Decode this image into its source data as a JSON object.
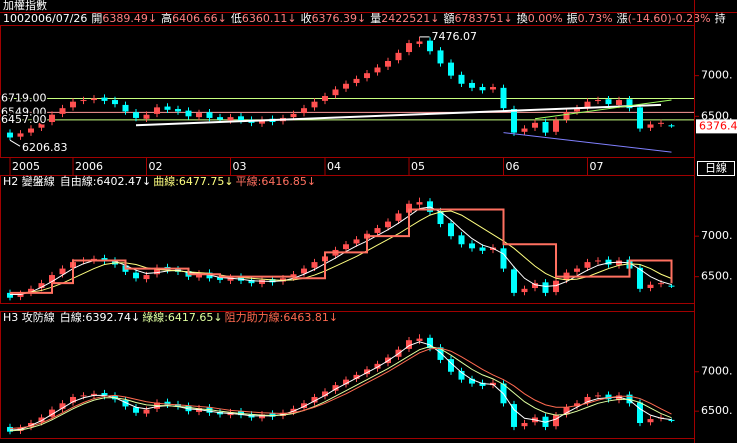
{
  "title": "加權指數",
  "chart_data": {
    "type": "candlestick",
    "info": [
      {
        "text": "100",
        "color": "#ffffff"
      },
      {
        "text": "2006/07/26",
        "color": "#ffffff"
      },
      {
        "text": "開",
        "color": "#ffffff"
      },
      {
        "text": "6389.49↓",
        "color": "#ff8080"
      },
      {
        "text": "高",
        "color": "#ffffff"
      },
      {
        "text": "6406.66↓",
        "color": "#ff8080"
      },
      {
        "text": "低",
        "color": "#ffffff"
      },
      {
        "text": "6360.11↓",
        "color": "#ff8080"
      },
      {
        "text": "收",
        "color": "#ffffff"
      },
      {
        "text": "6376.39↓",
        "color": "#ff8080"
      },
      {
        "text": "量",
        "color": "#ffffff"
      },
      {
        "text": "2422521↓",
        "color": "#ff8080"
      },
      {
        "text": "額",
        "color": "#ffffff"
      },
      {
        "text": "6783751↓",
        "color": "#ff8080"
      },
      {
        "text": "換",
        "color": "#ffffff"
      },
      {
        "text": "0.00%",
        "color": "#ff8080"
      },
      {
        "text": "振",
        "color": "#ffffff"
      },
      {
        "text": "0.73%",
        "color": "#ff8080"
      },
      {
        "text": "漲",
        "color": "#ffffff"
      },
      {
        "text": "(-14.60)-0.23%",
        "color": "#ff8080"
      },
      {
        "text": "持",
        "color": "#ffffff"
      }
    ],
    "categories": [
      "2005",
      null,
      null,
      null,
      null,
      null,
      "2006",
      null,
      null,
      null,
      null,
      null,
      null,
      "02",
      null,
      null,
      null,
      null,
      null,
      null,
      null,
      "03",
      null,
      null,
      null,
      null,
      null,
      null,
      null,
      null,
      "04",
      null,
      null,
      null,
      null,
      null,
      null,
      null,
      "05",
      null,
      null,
      null,
      null,
      null,
      null,
      null,
      null,
      "06",
      null,
      null,
      null,
      null,
      null,
      null,
      null,
      "07",
      null,
      null,
      null,
      null,
      null,
      null,
      null,
      null
    ],
    "open": [
      6300,
      6250,
      6300,
      6360,
      6430,
      6530,
      6610,
      6690,
      6700,
      6730,
      6700,
      6640,
      6550,
      6470,
      6530,
      6620,
      6590,
      6570,
      6490,
      6550,
      6490,
      6450,
      6500,
      6460,
      6410,
      6470,
      6440,
      6490,
      6540,
      6610,
      6690,
      6760,
      6840,
      6910,
      6970,
      7040,
      7110,
      7190,
      7290,
      7390,
      7430,
      7310,
      7160,
      7010,
      6910,
      6860,
      6830,
      6850,
      6590,
      6310,
      6360,
      6430,
      6310,
      6460,
      6560,
      6610,
      6690,
      6710,
      6640,
      6710,
      6610,
      6360,
      6410,
      6389.49
    ],
    "high": [
      6340,
      6330,
      6390,
      6460,
      6560,
      6640,
      6720,
      6740,
      6760,
      6770,
      6740,
      6680,
      6590,
      6560,
      6650,
      6660,
      6630,
      6610,
      6580,
      6590,
      6530,
      6530,
      6540,
      6500,
      6500,
      6510,
      6520,
      6570,
      6640,
      6720,
      6790,
      6870,
      6940,
      7000,
      7070,
      7140,
      7220,
      7320,
      7440,
      7476.07,
      7470,
      7350,
      7200,
      7050,
      6950,
      6900,
      6900,
      6890,
      6630,
      6390,
      6460,
      6470,
      6490,
      6590,
      6640,
      6720,
      6740,
      6750,
      6740,
      6750,
      6650,
      6440,
      6460,
      6406.66
    ],
    "low": [
      6206.83,
      6210,
      6260,
      6320,
      6390,
      6490,
      6570,
      6650,
      6660,
      6650,
      6610,
      6520,
      6440,
      6430,
      6490,
      6540,
      6520,
      6460,
      6450,
      6440,
      6420,
      6410,
      6410,
      6380,
      6370,
      6390,
      6400,
      6450,
      6500,
      6570,
      6650,
      6720,
      6800,
      6870,
      6930,
      7000,
      7070,
      7150,
      7250,
      7350,
      7260,
      7110,
      6960,
      6860,
      6810,
      6780,
      6790,
      6560,
      6260,
      6270,
      6320,
      6260,
      6270,
      6420,
      6520,
      6570,
      6650,
      6610,
      6600,
      6560,
      6310,
      6320,
      6370,
      6360.11
    ],
    "close": [
      6240,
      6290,
      6350,
      6420,
      6520,
      6600,
      6680,
      6700,
      6720,
      6690,
      6650,
      6560,
      6480,
      6520,
      6610,
      6580,
      6560,
      6500,
      6540,
      6480,
      6460,
      6490,
      6450,
      6420,
      6460,
      6430,
      6480,
      6530,
      6600,
      6680,
      6750,
      6830,
      6900,
      6960,
      7030,
      7100,
      7180,
      7280,
      7400,
      7420,
      7300,
      7150,
      7000,
      6900,
      6850,
      6820,
      6860,
      6600,
      6300,
      6350,
      6420,
      6300,
      6450,
      6550,
      6600,
      6680,
      6700,
      6650,
      6700,
      6600,
      6350,
      6400,
      6420,
      6376.39
    ],
    "up_color": "#ff5050",
    "down_color": "#00ffff",
    "last_price": 6376.4,
    "period_label": "日線",
    "panels": [
      {
        "ylim": [
          6000,
          7610
        ],
        "yticks": [
          {
            "value": 7000,
            "label": "7000."
          },
          {
            "value": 6500,
            "label": "6500."
          }
        ],
        "levels": [
          {
            "value": 6719,
            "label": "6719.00",
            "color": "#c8ff80"
          },
          {
            "value": 6549,
            "label": "6549.00",
            "color": "#ff9999"
          },
          {
            "value": 6457,
            "label": "6457.00",
            "color": "#c8ff80"
          }
        ],
        "trendlines": [
          {
            "color": "#ffffff",
            "x": [
              12,
              62
            ],
            "y": [
              6390,
              6640
            ]
          },
          {
            "color": "#a0ff60",
            "x": [
              50,
              63
            ],
            "y": [
              6470,
              6700
            ]
          },
          {
            "color": "#8080ff",
            "x": [
              47,
              63
            ],
            "y": [
              6300,
              6060
            ]
          }
        ],
        "annotations": [
          {
            "x": 39,
            "value": 7476.07
          },
          {
            "x": 0,
            "value": 6206.83
          }
        ]
      },
      {
        "label": "H2 變盤線",
        "ylim": [
          6175,
          7570
        ],
        "yticks": [
          {
            "value": 7000,
            "label": "7000."
          },
          {
            "value": 6500,
            "label": "6500."
          }
        ],
        "series": [
          {
            "name": "自由線",
            "legend_value": ":6402.47↓",
            "color": "#ffffff",
            "values": [
              6280,
              6280,
              6310,
              6370,
              6440,
              6520,
              6600,
              6660,
              6700,
              6705,
              6690,
              6640,
              6580,
              6540,
              6550,
              6570,
              6580,
              6550,
              6540,
              6520,
              6490,
              6480,
              6470,
              6450,
              6445,
              6440,
              6450,
              6480,
              6530,
              6590,
              6660,
              6730,
              6810,
              6880,
              6940,
              7010,
              7080,
              7160,
              7250,
              7340,
              7360,
              7300,
              7200,
              7080,
              6970,
              6890,
              6850,
              6780,
              6620,
              6480,
              6400,
              6380,
              6390,
              6440,
              6510,
              6580,
              6640,
              6670,
              6680,
              6670,
              6590,
              6500,
              6440,
              6402.47
            ]
          },
          {
            "name": "曲線",
            "legend_value": ":6477.75↓",
            "color": "#ffff80",
            "values": [
              6300,
              6300,
              6310,
              6330,
              6370,
              6420,
              6480,
              6540,
              6600,
              6650,
              6670,
              6670,
              6650,
              6610,
              6590,
              6580,
              6570,
              6560,
              6550,
              6540,
              6520,
              6500,
              6490,
              6480,
              6470,
              6460,
              6455,
              6460,
              6480,
              6520,
              6570,
              6630,
              6690,
              6750,
              6820,
              6890,
              6960,
              7030,
              7110,
              7190,
              7260,
              7300,
              7310,
              7260,
              7180,
              7100,
              7020,
              6940,
              6850,
              6740,
              6630,
              6540,
              6480,
              6460,
              6470,
              6500,
              6550,
              6600,
              6640,
              6660,
              6650,
              6600,
              6530,
              6477.75
            ]
          },
          {
            "name": "平線",
            "legend_value": ":6416.85↓",
            "color": "#ff7060",
            "step": true,
            "values": [
              6300,
              6300,
              6300,
              6300,
              6420,
              6420,
              6700,
              6700,
              6700,
              6700,
              6700,
              6600,
              6600,
              6600,
              6600,
              6600,
              6600,
              6530,
              6530,
              6530,
              6500,
              6500,
              6500,
              6500,
              6500,
              6500,
              6500,
              6480,
              6480,
              6480,
              6800,
              6800,
              6800,
              6800,
              7000,
              7000,
              7000,
              7000,
              7330,
              7330,
              7330,
              7330,
              7330,
              7330,
              7330,
              7330,
              7330,
              6900,
              6900,
              6900,
              6900,
              6900,
              6500,
              6500,
              6500,
              6500,
              6500,
              6500,
              6500,
              6700,
              6700,
              6700,
              6700,
              6416.85
            ]
          }
        ]
      },
      {
        "label": "H3 攻防線",
        "ylim": [
          6160,
          7580
        ],
        "yticks": [
          {
            "value": 7000,
            "label": "7000."
          },
          {
            "value": 6500,
            "label": "6500."
          }
        ],
        "series": [
          {
            "name": "白線",
            "legend_value": ":6392.74↓",
            "color": "#ffffff",
            "values": [
              6260,
              6270,
              6320,
              6380,
              6460,
              6540,
              6620,
              6670,
              6700,
              6700,
              6670,
              6610,
              6550,
              6530,
              6560,
              6570,
              6560,
              6530,
              6520,
              6500,
              6480,
              6470,
              6460,
              6440,
              6440,
              6440,
              6460,
              6500,
              6560,
              6630,
              6700,
              6780,
              6850,
              6920,
              6990,
              7060,
              7140,
              7230,
              7330,
              7380,
              7340,
              7240,
              7110,
              6990,
              6900,
              6850,
              6840,
              6720,
              6520,
              6410,
              6390,
              6360,
              6400,
              6480,
              6550,
              6620,
              6660,
              6670,
              6680,
              6640,
              6530,
              6450,
              6410,
              6392.74
            ]
          },
          {
            "name": "綠線",
            "legend_value": ":6417.65↓",
            "color": "#e0ffa0",
            "values": [
              6250,
              6260,
              6290,
              6330,
              6390,
              6460,
              6530,
              6590,
              6640,
              6670,
              6670,
              6650,
              6610,
              6580,
              6570,
              6570,
              6560,
              6550,
              6530,
              6520,
              6500,
              6485,
              6470,
              6460,
              6450,
              6445,
              6450,
              6470,
              6510,
              6560,
              6620,
              6690,
              6760,
              6830,
              6900,
              6970,
              7040,
              7120,
              7200,
              7280,
              7320,
              7290,
              7210,
              7120,
              7030,
              6960,
              6910,
              6840,
              6730,
              6620,
              6540,
              6480,
              6450,
              6460,
              6500,
              6550,
              6600,
              6630,
              6650,
              6650,
              6610,
              6540,
              6470,
              6417.65
            ]
          },
          {
            "name": "阻力助力線",
            "legend_value": ":6463.81↓",
            "color": "#ff6a50",
            "values": [
              6280,
              6290,
              6310,
              6350,
              6410,
              6480,
              6550,
              6610,
              6660,
              6690,
              6700,
              6680,
              6650,
              6620,
              6600,
              6590,
              6580,
              6570,
              6560,
              6550,
              6530,
              6510,
              6500,
              6490,
              6480,
              6475,
              6470,
              6480,
              6510,
              6550,
              6600,
              6660,
              6720,
              6790,
              6860,
              6930,
              7000,
              7080,
              7160,
              7240,
              7290,
              7300,
              7260,
              7190,
              7110,
              7030,
              6960,
              6900,
              6820,
              6720,
              6640,
              6580,
              6550,
              6550,
              6570,
              6600,
              6640,
              6670,
              6690,
              6690,
              6660,
              6600,
              6530,
              6463.81
            ]
          }
        ]
      }
    ]
  }
}
